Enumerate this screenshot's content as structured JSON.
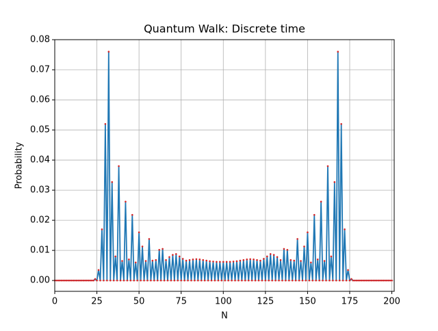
{
  "chart_data": {
    "type": "line",
    "title": "Quantum Walk: Discrete time",
    "xlabel": "N",
    "ylabel": "Probability",
    "x": [
      0,
      1,
      2,
      3,
      4,
      5,
      6,
      7,
      8,
      9,
      10,
      11,
      12,
      13,
      14,
      15,
      16,
      17,
      18,
      19,
      20,
      21,
      22,
      23,
      24,
      25,
      26,
      27,
      28,
      29,
      30,
      31,
      32,
      33,
      34,
      35,
      36,
      37,
      38,
      39,
      40,
      41,
      42,
      43,
      44,
      45,
      46,
      47,
      48,
      49,
      50,
      51,
      52,
      53,
      54,
      55,
      56,
      57,
      58,
      59,
      60,
      61,
      62,
      63,
      64,
      65,
      66,
      67,
      68,
      69,
      70,
      71,
      72,
      73,
      74,
      75,
      76,
      77,
      78,
      79,
      80,
      81,
      82,
      83,
      84,
      85,
      86,
      87,
      88,
      89,
      90,
      91,
      92,
      93,
      94,
      95,
      96,
      97,
      98,
      99,
      100,
      101,
      102,
      103,
      104,
      105,
      106,
      107,
      108,
      109,
      110,
      111,
      112,
      113,
      114,
      115,
      116,
      117,
      118,
      119,
      120,
      121,
      122,
      123,
      124,
      125,
      126,
      127,
      128,
      129,
      130,
      131,
      132,
      133,
      134,
      135,
      136,
      137,
      138,
      139,
      140,
      141,
      142,
      143,
      144,
      145,
      146,
      147,
      148,
      149,
      150,
      151,
      152,
      153,
      154,
      155,
      156,
      157,
      158,
      159,
      160,
      161,
      162,
      163,
      164,
      165,
      166,
      167,
      168,
      169,
      170,
      171,
      172,
      173,
      174,
      175,
      176,
      177,
      178,
      179,
      180,
      181,
      182,
      183,
      184,
      185,
      186,
      187,
      188,
      189,
      190,
      191,
      192,
      193,
      194,
      195,
      196,
      197,
      198,
      199,
      200
    ],
    "series": [
      {
        "color": "#1f77b4",
        "marker_color": "#d62728",
        "values": [
          0,
          0,
          0,
          0,
          0,
          0,
          0,
          0,
          0,
          0,
          0,
          0,
          0,
          0,
          0,
          0,
          0,
          0,
          0,
          0,
          0,
          0,
          0,
          0,
          0.0005,
          0,
          0.0035,
          0,
          0.017,
          0,
          0.052,
          0,
          0.076,
          0,
          0.0327,
          0,
          0.008,
          0,
          0.038,
          0,
          0.0065,
          0,
          0.0262,
          0,
          0.007,
          0,
          0.0218,
          0,
          0.006,
          0,
          0.016,
          0,
          0.0113,
          0,
          0.0065,
          0,
          0.0138,
          0,
          0.0066,
          0,
          0.0068,
          0,
          0.0102,
          0,
          0.0105,
          0,
          0.0068,
          0,
          0.0078,
          0,
          0.0085,
          0,
          0.0088,
          0,
          0.008,
          0,
          0.0072,
          0,
          0.0066,
          0,
          0.0068,
          0,
          0.007,
          0,
          0.0071,
          0,
          0.007,
          0,
          0.0068,
          0,
          0.0066,
          0,
          0.0064,
          0,
          0.0063,
          0,
          0.0062,
          0,
          0.0062,
          0,
          0.0062,
          0,
          0.0062,
          0,
          0.0062,
          0,
          0.0063,
          0,
          0.0064,
          0,
          0.0066,
          0,
          0.0068,
          0,
          0.007,
          0,
          0.0071,
          0,
          0.007,
          0,
          0.0068,
          0,
          0.0066,
          0,
          0.0072,
          0,
          0.008,
          0,
          0.0088,
          0,
          0.0085,
          0,
          0.0078,
          0,
          0.0068,
          0,
          0.0105,
          0,
          0.0102,
          0,
          0.0068,
          0,
          0.0066,
          0,
          0.0138,
          0,
          0.0065,
          0,
          0.0113,
          0,
          0.016,
          0,
          0.006,
          0,
          0.0218,
          0,
          0.007,
          0,
          0.0262,
          0,
          0.0065,
          0,
          0.038,
          0,
          0.008,
          0,
          0.0327,
          0,
          0.076,
          0,
          0.052,
          0,
          0.017,
          0,
          0.0035,
          0,
          0.0005,
          0,
          0,
          0,
          0,
          0,
          0,
          0,
          0,
          0,
          0,
          0,
          0,
          0,
          0,
          0,
          0,
          0,
          0,
          0,
          0,
          0,
          0,
          0,
          0
        ]
      }
    ],
    "xlim": [
      0,
      201.4
    ],
    "xticks": [
      0,
      25,
      50,
      75,
      100,
      125,
      150,
      175,
      200
    ],
    "ylim": [
      -0.0036,
      0.08
    ],
    "yticks": [
      {
        "value": 0,
        "label": "0.00"
      },
      {
        "value": 0.01,
        "label": "0.01"
      },
      {
        "value": 0.02,
        "label": "0.02"
      },
      {
        "value": 0.03,
        "label": "0.03"
      },
      {
        "value": 0.04,
        "label": "0.04"
      },
      {
        "value": 0.05,
        "label": "0.05"
      },
      {
        "value": 0.06,
        "label": "0.06"
      },
      {
        "value": 0.07,
        "label": "0.07"
      },
      {
        "value": 0.08,
        "label": "0.08"
      }
    ],
    "grid": true
  }
}
